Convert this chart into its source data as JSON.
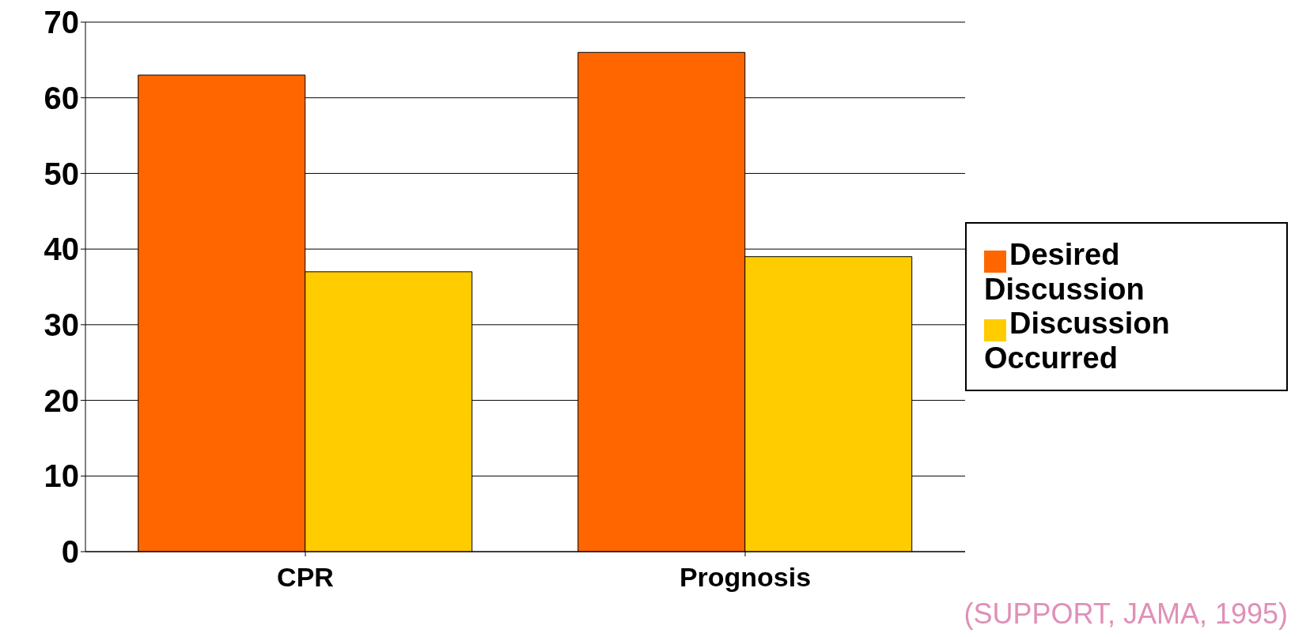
{
  "chart_data": {
    "type": "bar",
    "categories": [
      "CPR",
      "Prognosis"
    ],
    "series": [
      {
        "name": "Desired Discussion",
        "color": "#ff6600",
        "values": [
          63,
          66
        ]
      },
      {
        "name": "Discussion Occurred",
        "color": "#ffcc00",
        "values": [
          37,
          39
        ]
      }
    ],
    "ylim": [
      0,
      70
    ],
    "yticks": [
      0,
      10,
      20,
      30,
      40,
      50,
      60,
      70
    ],
    "grid": "y",
    "legend": "right",
    "annotations": [
      "(SUPPORT, JAMA, 1995)"
    ]
  }
}
